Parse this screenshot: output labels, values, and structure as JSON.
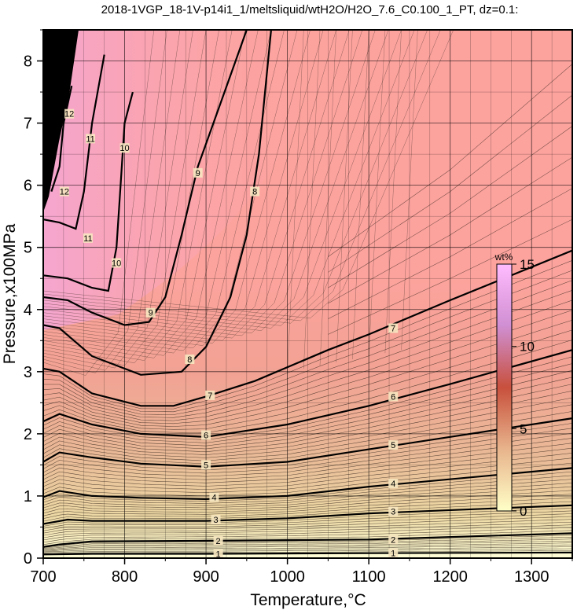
{
  "chart_data": {
    "type": "heatmap",
    "title": "2018-1VGP_18-1V-p14i1_1/meltsliquid/wtH2O/H2O_7.6_C0.100_1_PT, dz=0.1:",
    "xlabel": "Temperature,°C",
    "ylabel": "Pressure,x100MPa",
    "xlim": [
      700,
      1350
    ],
    "ylim": [
      0,
      8.5
    ],
    "x_ticks": [
      "700",
      "800",
      "900",
      "1000",
      "1100",
      "1200",
      "1300"
    ],
    "y_ticks": [
      "0",
      "1",
      "2",
      "3",
      "4",
      "5",
      "6",
      "7",
      "8"
    ],
    "grid": true,
    "colorbar": {
      "unit": "wt%",
      "range": [
        0,
        15
      ],
      "tick_labels": [
        "0",
        "5",
        "10",
        "15"
      ],
      "colors": [
        "#ffffc8",
        "#e8b48c",
        "#c8503c",
        "#d08fd2",
        "#ffbcff"
      ]
    },
    "background_color": "#fda39e",
    "contours": [
      {
        "level": "1",
        "points": [
          [
            700,
            0.06
          ],
          [
            760,
            0.07
          ],
          [
            900,
            0.07
          ],
          [
            1100,
            0.08
          ],
          [
            1350,
            0.09
          ]
        ],
        "label_at": [
          [
            915,
            0.07
          ],
          [
            1130,
            0.08
          ]
        ]
      },
      {
        "level": "2",
        "points": [
          [
            700,
            0.18
          ],
          [
            720,
            0.22
          ],
          [
            760,
            0.27
          ],
          [
            900,
            0.28
          ],
          [
            1100,
            0.3
          ],
          [
            1350,
            0.4
          ]
        ],
        "label_at": [
          [
            915,
            0.28
          ],
          [
            1130,
            0.3
          ]
        ]
      },
      {
        "level": "3",
        "points": [
          [
            700,
            0.55
          ],
          [
            730,
            0.62
          ],
          [
            760,
            0.6
          ],
          [
            900,
            0.6
          ],
          [
            1000,
            0.64
          ],
          [
            1100,
            0.72
          ],
          [
            1350,
            0.85
          ]
        ],
        "label_at": [
          [
            912,
            0.62
          ],
          [
            1130,
            0.75
          ]
        ]
      },
      {
        "level": "4",
        "points": [
          [
            700,
            0.98
          ],
          [
            720,
            1.08
          ],
          [
            760,
            1.0
          ],
          [
            820,
            0.97
          ],
          [
            900,
            0.95
          ],
          [
            1000,
            1.0
          ],
          [
            1100,
            1.15
          ],
          [
            1350,
            1.45
          ]
        ],
        "label_at": [
          [
            910,
            0.98
          ],
          [
            1130,
            1.2
          ]
        ]
      },
      {
        "level": "5",
        "points": [
          [
            700,
            1.55
          ],
          [
            720,
            1.7
          ],
          [
            760,
            1.62
          ],
          [
            820,
            1.52
          ],
          [
            900,
            1.47
          ],
          [
            1000,
            1.55
          ],
          [
            1100,
            1.75
          ],
          [
            1200,
            1.95
          ],
          [
            1350,
            2.25
          ]
        ],
        "label_at": [
          [
            900,
            1.5
          ],
          [
            1130,
            1.82
          ]
        ]
      },
      {
        "level": "6",
        "points": [
          [
            700,
            2.2
          ],
          [
            720,
            2.32
          ],
          [
            760,
            2.15
          ],
          [
            820,
            2.0
          ],
          [
            900,
            1.95
          ],
          [
            1000,
            2.15
          ],
          [
            1100,
            2.45
          ],
          [
            1200,
            2.8
          ],
          [
            1350,
            3.35
          ]
        ],
        "label_at": [
          [
            900,
            1.98
          ],
          [
            1130,
            2.6
          ]
        ]
      },
      {
        "level": "7",
        "points": [
          [
            700,
            3.05
          ],
          [
            720,
            3.0
          ],
          [
            760,
            2.65
          ],
          [
            820,
            2.45
          ],
          [
            860,
            2.45
          ],
          [
            900,
            2.6
          ],
          [
            960,
            2.85
          ],
          [
            1050,
            3.35
          ],
          [
            1100,
            3.6
          ],
          [
            1200,
            4.15
          ],
          [
            1350,
            4.95
          ]
        ],
        "label_at": [
          [
            905,
            2.62
          ],
          [
            1130,
            3.7
          ]
        ]
      },
      {
        "level": "8",
        "points": [
          [
            700,
            3.75
          ],
          [
            720,
            3.7
          ],
          [
            760,
            3.25
          ],
          [
            820,
            2.95
          ],
          [
            870,
            3.0
          ],
          [
            900,
            3.4
          ],
          [
            930,
            4.2
          ],
          [
            950,
            5.2
          ],
          [
            965,
            6.5
          ],
          [
            980,
            8.5
          ]
        ],
        "label_at": [
          [
            880,
            3.2
          ],
          [
            960,
            5.9
          ]
        ]
      },
      {
        "level": "9",
        "points": [
          [
            700,
            4.2
          ],
          [
            730,
            4.15
          ],
          [
            760,
            3.95
          ],
          [
            800,
            3.75
          ],
          [
            830,
            3.8
          ],
          [
            850,
            4.2
          ],
          [
            870,
            5.2
          ],
          [
            890,
            6.3
          ],
          [
            920,
            7.4
          ],
          [
            950,
            8.5
          ]
        ],
        "label_at": [
          [
            832,
            3.95
          ],
          [
            890,
            6.2
          ]
        ]
      },
      {
        "level": "10",
        "points": [
          [
            700,
            4.55
          ],
          [
            730,
            4.5
          ],
          [
            760,
            4.35
          ],
          [
            780,
            4.3
          ],
          [
            790,
            5.0
          ],
          [
            795,
            6.0
          ],
          [
            800,
            7.0
          ],
          [
            810,
            7.5
          ]
        ],
        "label_at": [
          [
            790,
            4.75
          ],
          [
            800,
            6.6
          ]
        ]
      },
      {
        "level": "11",
        "points": [
          [
            700,
            5.45
          ],
          [
            720,
            5.4
          ],
          [
            740,
            5.3
          ],
          [
            750,
            5.9
          ],
          [
            760,
            7.0
          ],
          [
            775,
            8.1
          ]
        ],
        "label_at": [
          [
            755,
            5.15
          ],
          [
            758,
            6.75
          ]
        ]
      },
      {
        "level": "12",
        "points": [
          [
            710,
            5.9
          ],
          [
            720,
            6.3
          ],
          [
            725,
            7.0
          ],
          [
            735,
            7.6
          ]
        ],
        "label_at": [
          [
            726,
            5.9
          ],
          [
            732,
            7.15
          ]
        ]
      }
    ]
  }
}
